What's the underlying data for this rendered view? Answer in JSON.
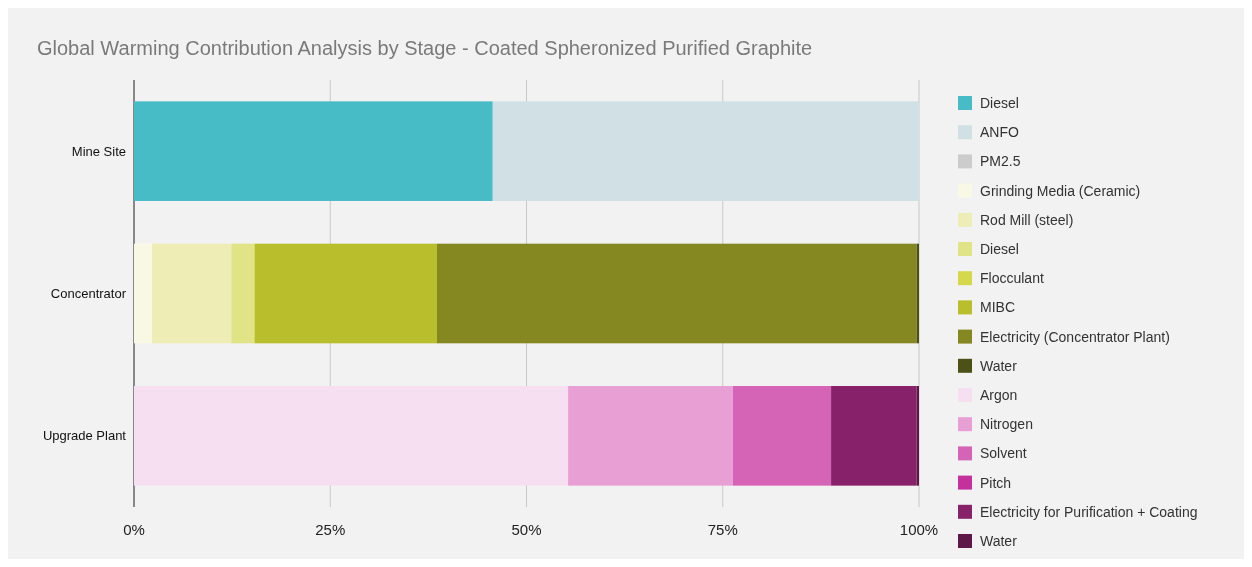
{
  "chart_data": {
    "type": "bar",
    "title": "Global Warming Contribution Analysis by Stage - Coated Spheronized Purified Graphite",
    "orientation": "horizontal",
    "stacked": true,
    "categories": [
      "Mine Site",
      "Concentrator",
      "Upgrade Plant"
    ],
    "xlim": [
      0,
      100
    ],
    "xticks": [
      {
        "value": 0,
        "label": "0%"
      },
      {
        "value": 25,
        "label": "25%"
      },
      {
        "value": 50,
        "label": "50%"
      },
      {
        "value": 75,
        "label": "75%"
      },
      {
        "value": 100,
        "label": "100%"
      }
    ],
    "grid": "x",
    "legend": "right",
    "series": [
      {
        "name": "Diesel",
        "color": "#48bcc6",
        "values": [
          45.7,
          null,
          null
        ]
      },
      {
        "name": "ANFO",
        "color": "#d1e0e4",
        "values": [
          54.3,
          null,
          null
        ]
      },
      {
        "name": "PM2.5",
        "color": "#cccccc",
        "values": [
          0,
          null,
          null
        ]
      },
      {
        "name": "Grinding Media (Ceramic)",
        "color": "#f8f8e4",
        "values": [
          null,
          2.3,
          null
        ]
      },
      {
        "name": "Rod Mill (steel)",
        "color": "#eeedb6",
        "values": [
          null,
          10.1,
          null
        ]
      },
      {
        "name": "Diesel",
        "color": "#e0e386",
        "values": [
          null,
          2.9,
          null
        ]
      },
      {
        "name": "Flocculant",
        "color": "#d4d84a",
        "values": [
          null,
          0.1,
          null
        ]
      },
      {
        "name": "MIBC",
        "color": "#b8be2c",
        "values": [
          null,
          23.2,
          null
        ]
      },
      {
        "name": "Electricity (Concentrator Plant)",
        "color": "#858721",
        "values": [
          null,
          61.1,
          null
        ]
      },
      {
        "name": "Water",
        "color": "#4e5116",
        "values": [
          null,
          0.3,
          null
        ]
      },
      {
        "name": "Argon",
        "color": "#f6dff0",
        "values": [
          null,
          null,
          55.3
        ]
      },
      {
        "name": "Nitrogen",
        "color": "#e8a0d4",
        "values": [
          null,
          null,
          21.0
        ]
      },
      {
        "name": "Solvent",
        "color": "#d664b6",
        "values": [
          null,
          null,
          12.5
        ]
      },
      {
        "name": "Pitch",
        "color": "#c4309c",
        "values": [
          null,
          null,
          0
        ]
      },
      {
        "name": "Electricity for Purification + Coating",
        "color": "#86216a",
        "values": [
          null,
          null,
          10.9
        ]
      },
      {
        "name": "Water",
        "color": "#5e1848",
        "values": [
          null,
          null,
          0.3
        ]
      }
    ]
  }
}
